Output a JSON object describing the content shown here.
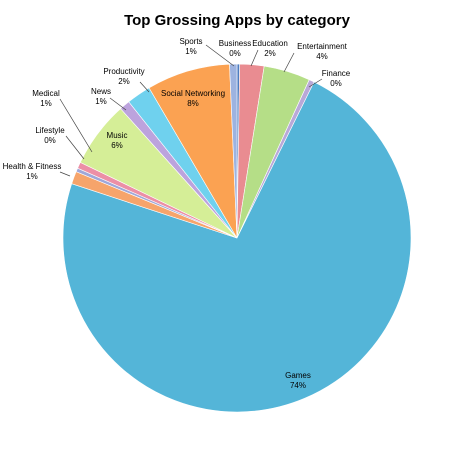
{
  "chart_data": {
    "type": "pie",
    "title": "Top Grossing Apps by category",
    "slices": [
      {
        "name": "Sports",
        "percent_label": "1%",
        "value": 0.7,
        "color": "#9DB3E0"
      },
      {
        "name": "Business",
        "percent_label": "0%",
        "value": 0.25,
        "color": "#4E7DC1"
      },
      {
        "name": "Education",
        "percent_label": "2%",
        "value": 2.3,
        "color": "#E98C91"
      },
      {
        "name": "Entertainment",
        "percent_label": "4%",
        "value": 4.4,
        "color": "#B5DE87"
      },
      {
        "name": "Finance",
        "percent_label": "0%",
        "value": 0.5,
        "color": "#B9A8D8"
      },
      {
        "name": "Games",
        "percent_label": "74%",
        "value": 74.2,
        "color": "#54B5D8"
      },
      {
        "name": "Health & Fitness",
        "percent_label": "1%",
        "value": 1.2,
        "color": "#F6A46B"
      },
      {
        "name": "Lifestyle",
        "percent_label": "0%",
        "value": 0.35,
        "color": "#9FA7D9"
      },
      {
        "name": "Medical",
        "percent_label": "1%",
        "value": 0.6,
        "color": "#EC8FA6"
      },
      {
        "name": "Music",
        "percent_label": "6%",
        "value": 6.3,
        "color": "#D5EE97"
      },
      {
        "name": "News",
        "percent_label": "1%",
        "value": 1.0,
        "color": "#BCA3DD"
      },
      {
        "name": "Productivity",
        "percent_label": "2%",
        "value": 2.3,
        "color": "#6FD1EE"
      },
      {
        "name": "Social Networking",
        "percent_label": "8%",
        "value": 7.9,
        "color": "#FBA252"
      }
    ],
    "legend": "none"
  }
}
